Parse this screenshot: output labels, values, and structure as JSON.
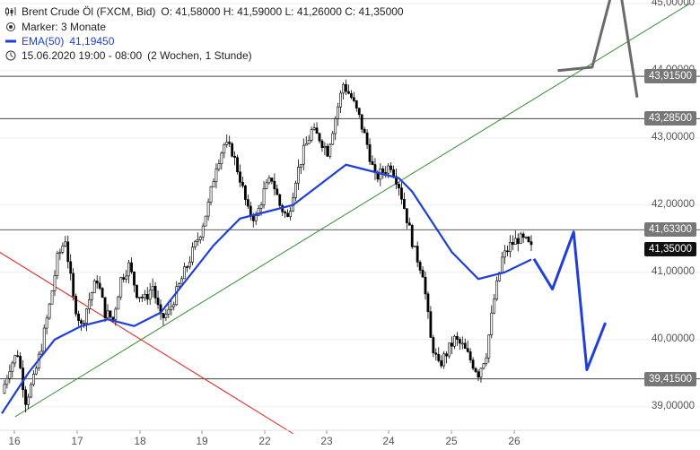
{
  "header": {
    "instrument": "Brent Crude Öl (FXCM, Bid)",
    "ohlc": "O: 41,58000  H: 41,59000  L: 41,26000  C: 41,35000",
    "marker": "Marker: 3 Monate",
    "ema_label": "EMA(50)",
    "ema_value": "41,19450",
    "range": "15.06.2020 19:00 - 08:00",
    "range_note": "(2 Wochen, 1 Stunde)"
  },
  "colors": {
    "ema": "#1f3fd8",
    "up_trend": "#2e8b2e",
    "down_trend": "#e02020",
    "projection_blue": "#1f3fd8",
    "projection_gray": "#6a6a6a",
    "candle": "#000000"
  },
  "chart_data": {
    "type": "candlestick",
    "x_ticks": [
      "16",
      "17",
      "18",
      "19",
      "22",
      "23",
      "24",
      "25",
      "26"
    ],
    "y_ticks": [
      "45,00000",
      "44,00000",
      "43,00000",
      "42,00000",
      "41,00000",
      "40,00000",
      "39,00000"
    ],
    "y_tick_values": [
      45,
      44,
      43,
      42,
      41,
      40,
      39
    ],
    "ylim": [
      38.65,
      45.05
    ],
    "horizontal_levels": [
      {
        "value": 43.915,
        "label": "43,91500"
      },
      {
        "value": 43.285,
        "label": "43,28500"
      },
      {
        "value": 41.633,
        "label": "41,63300"
      },
      {
        "value": 39.415,
        "label": "39,41500"
      }
    ],
    "last_price": {
      "value": 41.35,
      "label": "41,35000"
    },
    "close_path": [
      [
        0,
        39.2
      ],
      [
        3,
        39.6
      ],
      [
        6,
        39.8
      ],
      [
        9,
        39.1
      ],
      [
        12,
        39.4
      ],
      [
        15,
        39.9
      ],
      [
        18,
        40.5
      ],
      [
        21,
        41.2
      ],
      [
        24,
        41.5
      ],
      [
        27,
        40.6
      ],
      [
        30,
        40.2
      ],
      [
        33,
        40.6
      ],
      [
        36,
        40.9
      ],
      [
        39,
        40.4
      ],
      [
        42,
        40.3
      ],
      [
        45,
        40.9
      ],
      [
        48,
        41.1
      ],
      [
        51,
        40.7
      ],
      [
        54,
        40.6
      ],
      [
        57,
        40.8
      ],
      [
        60,
        40.3
      ],
      [
        63,
        40.4
      ],
      [
        66,
        40.7
      ],
      [
        69,
        41.0
      ],
      [
        72,
        41.3
      ],
      [
        75,
        41.6
      ],
      [
        78,
        42.0
      ],
      [
        81,
        42.6
      ],
      [
        84,
        42.9
      ],
      [
        87,
        42.8
      ],
      [
        90,
        42.4
      ],
      [
        93,
        41.9
      ],
      [
        96,
        41.8
      ],
      [
        99,
        42.2
      ],
      [
        102,
        42.4
      ],
      [
        105,
        42.0
      ],
      [
        108,
        41.8
      ],
      [
        111,
        42.4
      ],
      [
        114,
        42.8
      ],
      [
        117,
        43.1
      ],
      [
        120,
        43.0
      ],
      [
        123,
        42.8
      ],
      [
        126,
        43.3
      ],
      [
        129,
        43.8
      ],
      [
        132,
        43.6
      ],
      [
        135,
        43.3
      ],
      [
        138,
        42.9
      ],
      [
        141,
        42.4
      ],
      [
        144,
        42.5
      ],
      [
        147,
        42.6
      ],
      [
        150,
        42.3
      ],
      [
        153,
        41.8
      ],
      [
        156,
        41.3
      ],
      [
        159,
        41.0
      ],
      [
        162,
        40.0
      ],
      [
        165,
        39.6
      ],
      [
        168,
        39.8
      ],
      [
        171,
        40.0
      ],
      [
        174,
        39.9
      ],
      [
        177,
        39.7
      ],
      [
        180,
        39.5
      ],
      [
        183,
        39.8
      ],
      [
        186,
        40.6
      ],
      [
        189,
        41.2
      ],
      [
        192,
        41.4
      ],
      [
        195,
        41.5
      ],
      [
        198,
        41.45
      ],
      [
        200,
        41.35
      ]
    ],
    "ema50_path": [
      [
        0,
        38.9
      ],
      [
        10,
        39.5
      ],
      [
        20,
        40.0
      ],
      [
        30,
        40.2
      ],
      [
        40,
        40.3
      ],
      [
        50,
        40.2
      ],
      [
        60,
        40.4
      ],
      [
        70,
        40.9
      ],
      [
        80,
        41.4
      ],
      [
        90,
        41.8
      ],
      [
        100,
        41.9
      ],
      [
        110,
        42.0
      ],
      [
        120,
        42.3
      ],
      [
        130,
        42.6
      ],
      [
        140,
        42.5
      ],
      [
        150,
        42.4
      ],
      [
        155,
        42.2
      ],
      [
        160,
        41.9
      ],
      [
        170,
        41.3
      ],
      [
        180,
        40.9
      ],
      [
        190,
        41.0
      ],
      [
        200,
        41.19
      ]
    ],
    "trendlines": [
      {
        "name": "support",
        "from": [
          5,
          38.85
        ],
        "to": [
          260,
          45.0
        ]
      },
      {
        "name": "resistance",
        "from": [
          -5,
          41.4
        ],
        "to": [
          110,
          38.6
        ]
      }
    ],
    "projections": [
      {
        "name": "blue",
        "points": [
          [
            201,
            41.2
          ],
          [
            208,
            40.75
          ],
          [
            216,
            41.6
          ],
          [
            221,
            39.55
          ],
          [
            228,
            40.25
          ]
        ]
      },
      {
        "name": "gray",
        "points": [
          [
            210,
            44.0
          ],
          [
            223,
            44.05
          ],
          [
            230,
            45.1
          ],
          [
            234,
            45.1
          ],
          [
            240,
            43.6
          ]
        ]
      }
    ]
  }
}
